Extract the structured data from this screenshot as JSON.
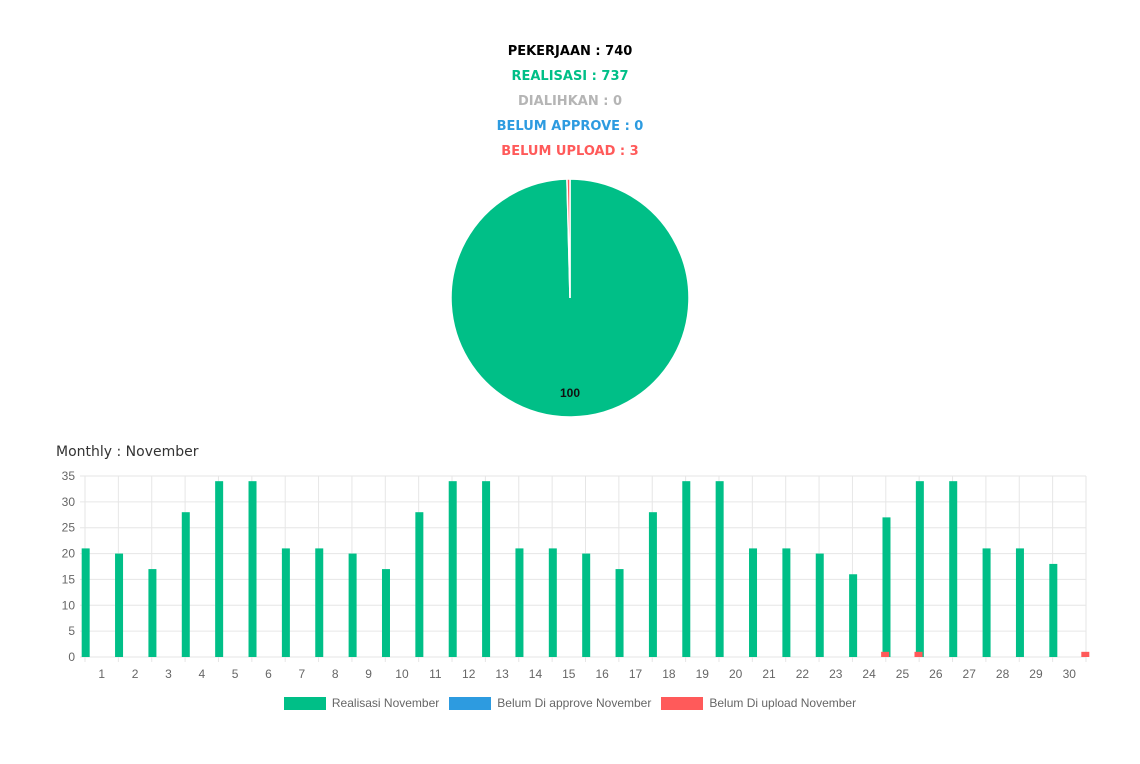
{
  "summary": {
    "pekerjaan": "PEKERJAAN : 740",
    "realisasi": "REALISASI : 737",
    "dialihkan": "DIALIHKAN : 0",
    "belum_approve": "BELUM APPROVE : 0",
    "belum_upload": "BELUM UPLOAD : 3"
  },
  "colors": {
    "black": "#000000",
    "green": "#00bf87",
    "gray": "#b5b5b5",
    "blue": "#2d9be0",
    "red": "#ff5a5a",
    "grid": "#e6e6e6",
    "tick": "#666666"
  },
  "chart_data": [
    {
      "type": "pie",
      "labels": [
        "Realisasi",
        "Belum Upload"
      ],
      "values": [
        737,
        3
      ],
      "data_labels": [
        "100",
        ""
      ],
      "colors": [
        "#00bf87",
        "#ff5a5a"
      ]
    },
    {
      "type": "bar",
      "title": "Monthly : November",
      "categories": [
        "1",
        "2",
        "3",
        "4",
        "5",
        "6",
        "7",
        "8",
        "9",
        "10",
        "11",
        "12",
        "13",
        "14",
        "15",
        "16",
        "17",
        "18",
        "19",
        "20",
        "21",
        "22",
        "23",
        "24",
        "25",
        "26",
        "27",
        "28",
        "29",
        "30"
      ],
      "series": [
        {
          "name": "Realisasi November",
          "color": "#00bf87",
          "values": [
            21,
            20,
            17,
            28,
            34,
            34,
            21,
            21,
            20,
            17,
            28,
            34,
            34,
            21,
            21,
            20,
            17,
            28,
            34,
            34,
            21,
            21,
            20,
            16,
            27,
            34,
            34,
            21,
            21,
            18
          ]
        },
        {
          "name": "Belum Di approve November",
          "color": "#2d9be0",
          "values": [
            0,
            0,
            0,
            0,
            0,
            0,
            0,
            0,
            0,
            0,
            0,
            0,
            0,
            0,
            0,
            0,
            0,
            0,
            0,
            0,
            0,
            0,
            0,
            0,
            0,
            0,
            0,
            0,
            0,
            0
          ]
        },
        {
          "name": "Belum Di upload November",
          "color": "#ff5a5a",
          "values": [
            0,
            0,
            0,
            0,
            0,
            0,
            0,
            0,
            0,
            0,
            0,
            0,
            0,
            0,
            0,
            0,
            0,
            0,
            0,
            0,
            0,
            0,
            0,
            1,
            1,
            0,
            0,
            0,
            0,
            1
          ]
        }
      ],
      "yticks": [
        "0",
        "5",
        "10",
        "15",
        "20",
        "25",
        "30",
        "35"
      ],
      "ylim": [
        0,
        35
      ],
      "grid": true,
      "legend_position": "bottom"
    }
  ]
}
